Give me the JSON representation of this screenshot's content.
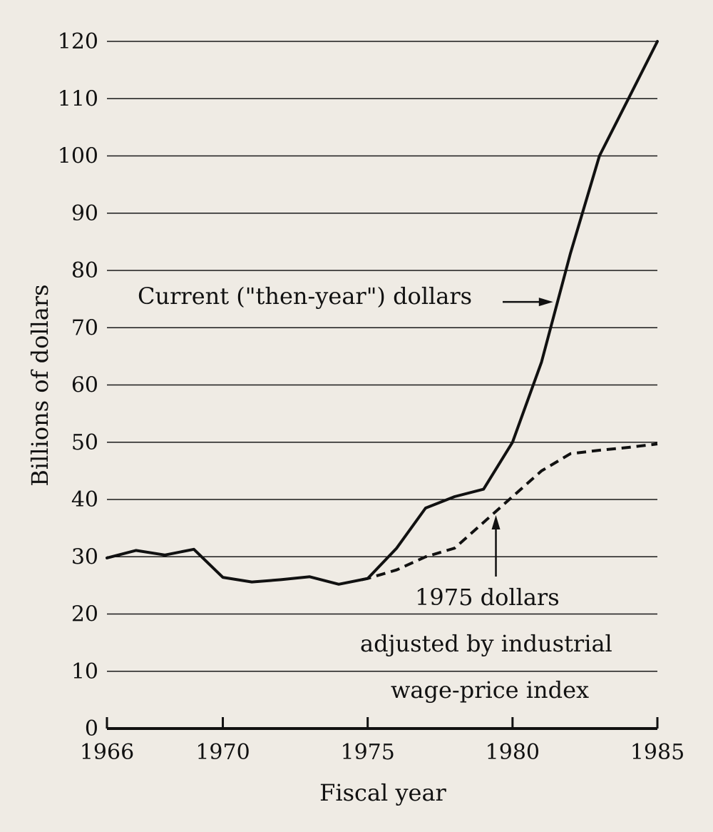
{
  "chart_data": {
    "type": "line",
    "title": "",
    "xlabel": "Fiscal year",
    "ylabel": "Billions of dollars",
    "xlim": [
      1966,
      1985
    ],
    "ylim": [
      0,
      120
    ],
    "x_ticks": [
      1966,
      1970,
      1975,
      1980,
      1985
    ],
    "x_tick_labels": [
      "1966",
      "1970",
      "1975",
      "1980",
      "1985"
    ],
    "y_ticks": [
      0,
      10,
      20,
      30,
      40,
      50,
      60,
      70,
      80,
      90,
      100,
      110,
      120
    ],
    "y_tick_labels": [
      "0",
      "10",
      "20",
      "30",
      "40",
      "50",
      "60",
      "70",
      "80",
      "90",
      "100",
      "110",
      "120"
    ],
    "grid": true,
    "series": [
      {
        "name": "Current (\"then-year\") dollars",
        "style": "solid",
        "x": [
          1966,
          1967,
          1968,
          1969,
          1970,
          1971,
          1972,
          1973,
          1974,
          1975,
          1976,
          1977,
          1978,
          1979,
          1980,
          1981,
          1982,
          1983,
          1984,
          1985
        ],
        "y": [
          29.8,
          31.1,
          30.3,
          31.3,
          26.4,
          25.6,
          26.0,
          26.5,
          25.2,
          26.2,
          31.5,
          38.5,
          40.5,
          41.8,
          50.0,
          64.0,
          83.0,
          100.0,
          110.0,
          120.0
        ]
      },
      {
        "name": "1975 dollars adjusted by industrial wage-price index",
        "style": "dashed",
        "x": [
          1974.8,
          1975,
          1976,
          1977,
          1978,
          1979,
          1980,
          1981,
          1982,
          1983,
          1984,
          1985
        ],
        "y": [
          26.0,
          26.2,
          27.7,
          30.0,
          31.5,
          36.0,
          40.5,
          45.0,
          48.0,
          48.6,
          49.1,
          49.7
        ]
      }
    ],
    "annotations": [
      {
        "text": "Current (\"then-year\") dollars",
        "arrow_to": [
          1981.5,
          74.5
        ]
      },
      {
        "lines": [
          "1975 dollars",
          "adjusted by industrial",
          "wage-price index"
        ],
        "arrow_to": [
          1979.5,
          38.0
        ]
      }
    ]
  }
}
